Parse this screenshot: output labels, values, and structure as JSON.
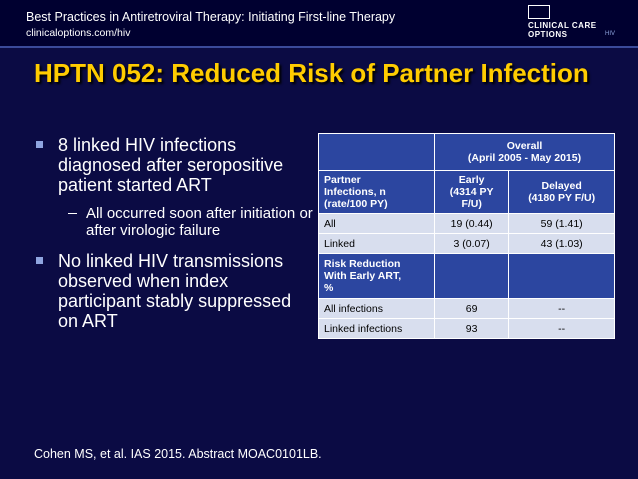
{
  "header": {
    "title": "Best Practices in Antiretroviral Therapy: Initiating First-line Therapy",
    "url": "clinicaloptions.com/hiv",
    "logo": "CLINICAL CARE OPTIONS",
    "logo_sub": "HIV"
  },
  "slide": {
    "title": "HPTN 052: Reduced Risk of Partner Infection",
    "bullets": [
      {
        "text": "8 linked HIV infections diagnosed after seropositive patient started ART",
        "sub": [
          "All occurred soon after initiation or after virologic failure"
        ]
      },
      {
        "text": "No linked HIV transmissions observed when index participant stably suppressed on ART"
      }
    ],
    "footnote": "Cohen MS, et al. IAS 2015. Abstract MOAC0101LB."
  },
  "table": {
    "group_header": [
      "Overall",
      "(April 2005 - May 2015)"
    ],
    "columns": [
      [
        "Partner",
        "Infections, n",
        "(rate/100 PY)"
      ],
      [
        "Early",
        "(4314 PY",
        "F/U)"
      ],
      [
        "Delayed",
        "(4180 PY F/U)"
      ]
    ],
    "rows": [
      [
        "All",
        "19 (0.44)",
        "59 (1.41)"
      ],
      [
        "Linked",
        "3 (0.07)",
        "43 (1.03)"
      ]
    ],
    "section": [
      "Risk Reduction",
      "With Early ART,",
      "%"
    ],
    "section_rows": [
      [
        "All infections",
        "69",
        "--"
      ],
      [
        "Linked infections",
        "93",
        "--"
      ]
    ]
  }
}
